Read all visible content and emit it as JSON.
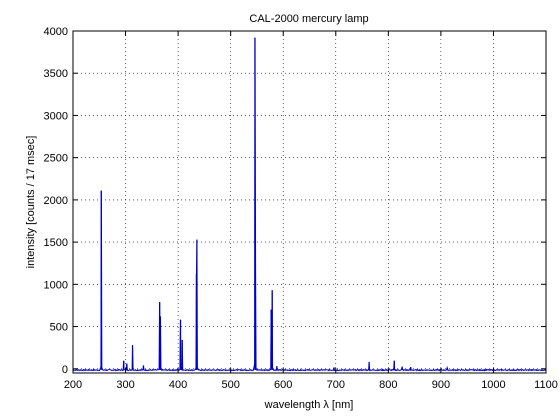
{
  "chart_data": {
    "type": "line",
    "title": "CAL-2000 mercury lamp",
    "xlabel": "wavelength λ [nm]",
    "ylabel": "intensity [counts / 17 msec]",
    "xlim": [
      200,
      1100
    ],
    "ylim": [
      -50,
      4000
    ],
    "xticks": [
      200,
      300,
      400,
      500,
      600,
      700,
      800,
      900,
      1000,
      1100
    ],
    "yticks": [
      0,
      500,
      1000,
      1500,
      2000,
      2500,
      3000,
      3500,
      4000
    ],
    "grid": true,
    "series_color": "#0000cc",
    "baseline": -15,
    "peaks": [
      {
        "x": 253.7,
        "y": 2110
      },
      {
        "x": 296.7,
        "y": 95
      },
      {
        "x": 302.2,
        "y": 60
      },
      {
        "x": 313.2,
        "y": 280
      },
      {
        "x": 334.1,
        "y": 40
      },
      {
        "x": 365.0,
        "y": 790
      },
      {
        "x": 366.3,
        "y": 620
      },
      {
        "x": 404.7,
        "y": 580
      },
      {
        "x": 407.8,
        "y": 340
      },
      {
        "x": 434.8,
        "y": 1120
      },
      {
        "x": 435.8,
        "y": 1530
      },
      {
        "x": 546.1,
        "y": 3920
      },
      {
        "x": 547.0,
        "y": 1260
      },
      {
        "x": 576.9,
        "y": 700
      },
      {
        "x": 579.1,
        "y": 930
      },
      {
        "x": 588.0,
        "y": 30
      },
      {
        "x": 696.5,
        "y": 15
      },
      {
        "x": 763.5,
        "y": 80
      },
      {
        "x": 811.5,
        "y": 95
      },
      {
        "x": 826.0,
        "y": 25
      },
      {
        "x": 842.5,
        "y": 20
      },
      {
        "x": 912.3,
        "y": 12
      }
    ]
  }
}
